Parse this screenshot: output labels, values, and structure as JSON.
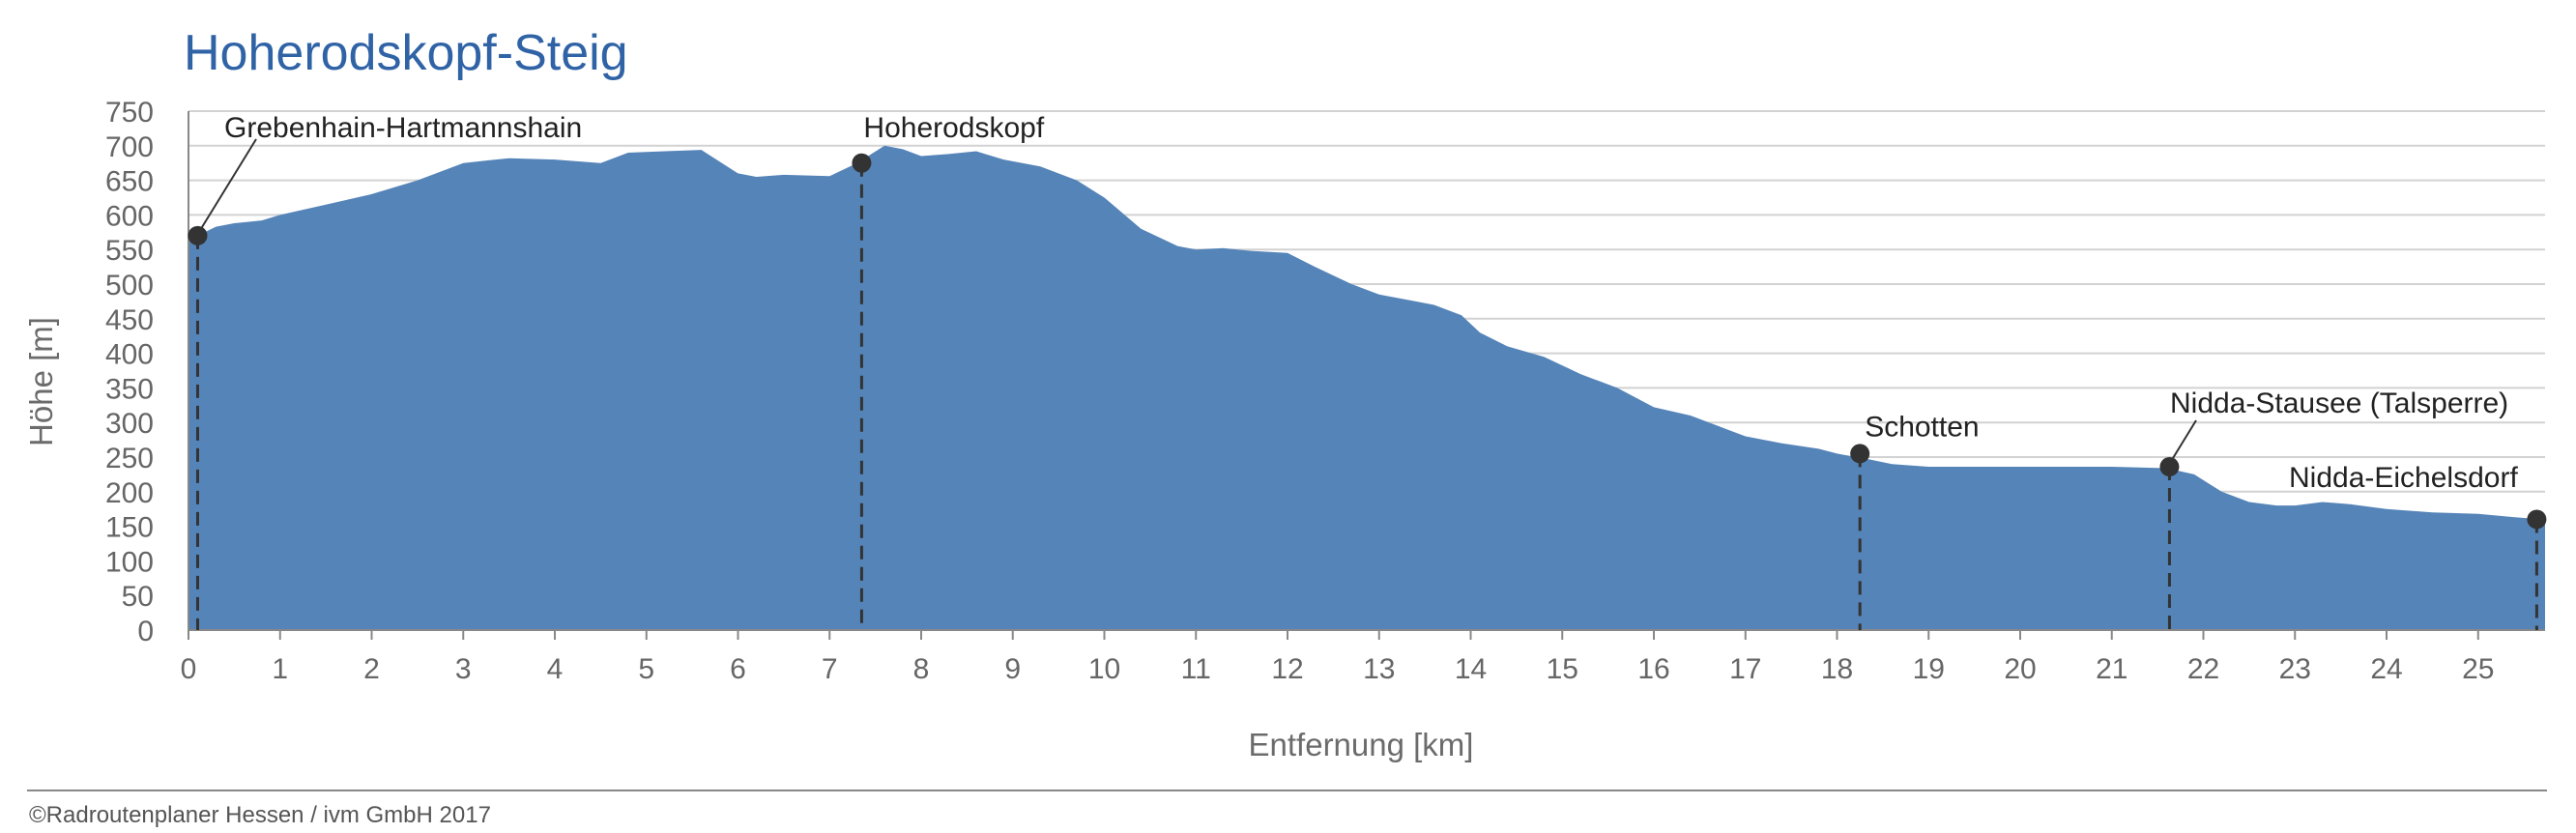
{
  "chart_data": {
    "type": "area",
    "title": "Hoherodskopf-Steig",
    "xlabel": "Entfernung [km]",
    "ylabel": "Höhe [m]",
    "xlim": [
      0,
      26
    ],
    "ylim": [
      0,
      750
    ],
    "x_ticks": [
      0,
      1,
      2,
      3,
      4,
      5,
      6,
      7,
      8,
      9,
      10,
      11,
      12,
      13,
      14,
      15,
      16,
      17,
      18,
      19,
      20,
      21,
      22,
      23,
      24,
      25
    ],
    "y_ticks": [
      0,
      50,
      100,
      150,
      200,
      250,
      300,
      350,
      400,
      450,
      500,
      550,
      600,
      650,
      700,
      750
    ],
    "grid": true,
    "colors": {
      "area": "#5584b8",
      "title": "#2f63a6",
      "marker": "#333333",
      "grid": "#d2d2d2"
    },
    "series": [
      {
        "x": [
          0,
          0.1,
          0.3,
          0.5,
          0.8,
          1.0,
          1.5,
          2.0,
          2.5,
          3.0,
          3.5,
          4.0,
          4.5,
          4.8,
          5.2,
          5.6,
          6.0,
          6.2,
          6.5,
          7.0,
          7.3,
          7.6,
          7.8,
          8.0,
          8.3,
          8.6,
          8.9,
          9.3,
          9.7,
          10.0,
          10.4,
          10.8,
          11.0,
          11.3,
          11.6,
          12.0,
          12.3,
          12.7,
          13.0,
          13.4,
          13.6,
          13.9,
          14.1,
          14.4,
          14.8,
          15.2,
          15.6,
          16.0,
          16.4,
          16.8,
          17.0,
          17.4,
          17.8,
          18.0,
          18.3,
          18.6,
          19.0,
          19.5,
          20.0,
          20.5,
          21.0,
          21.6,
          21.9,
          22.2,
          22.5,
          22.8,
          23.0,
          23.3,
          23.6,
          24.0,
          24.5,
          25.0,
          25.4,
          25.7
        ],
        "values": [
          570,
          570,
          583,
          588,
          592,
          600,
          615,
          630,
          650,
          675,
          682,
          680,
          675,
          690,
          692,
          694,
          660,
          655,
          658,
          656,
          675,
          700,
          695,
          685,
          688,
          692,
          680,
          670,
          650,
          625,
          580,
          555,
          550,
          552,
          548,
          545,
          525,
          500,
          485,
          475,
          470,
          455,
          430,
          410,
          395,
          370,
          350,
          322,
          310,
          290,
          280,
          270,
          262,
          255,
          248,
          240,
          236,
          236,
          236,
          236,
          236,
          234,
          225,
          200,
          185,
          180,
          180,
          185,
          182,
          175,
          170,
          168,
          163,
          160
        ]
      }
    ],
    "markers": [
      {
        "name": "Grebenhain-Hartmannshain",
        "x": 0.1,
        "y": 570
      },
      {
        "name": "Hoherodskopf",
        "x": 7.35,
        "y": 675
      },
      {
        "name": "Schotten",
        "x": 18.25,
        "y": 255
      },
      {
        "name": "Nidda-Stausee (Talsperre)",
        "x": 21.63,
        "y": 236
      },
      {
        "name": "Nidda-Eichelsdorf",
        "x": 25.64,
        "y": 160
      }
    ]
  },
  "footer": "©Radroutenplaner Hessen / ivm GmbH 2017"
}
